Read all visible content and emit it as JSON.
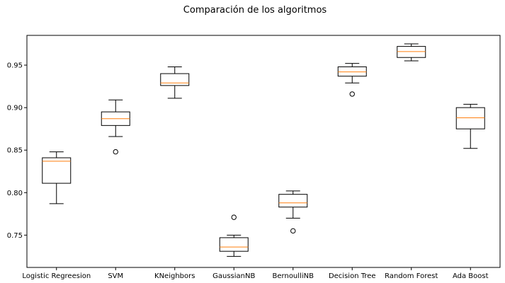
{
  "chart_data": {
    "type": "box",
    "title": "Comparación de los algoritmos",
    "xlabel": "",
    "ylabel": "",
    "ylim": [
      0.712,
      0.985
    ],
    "yticks": [
      0.75,
      0.8,
      0.85,
      0.9,
      0.95
    ],
    "ytick_labels": [
      "0.75",
      "0.80",
      "0.85",
      "0.90",
      "0.95"
    ],
    "grid": false,
    "colors": {
      "box": "#000000",
      "median": "#ff7f0e",
      "frame": "#000000"
    },
    "categories": [
      "Logistic Regreesion",
      "SVM",
      "KNeighbors",
      "GaussianNB",
      "BernoulliNB",
      "Decision Tree",
      "Random Forest",
      "Ada Boost"
    ],
    "boxes": [
      {
        "whisker_low": 0.787,
        "q1": 0.811,
        "median": 0.837,
        "q3": 0.841,
        "whisker_high": 0.848,
        "outliers": []
      },
      {
        "whisker_low": 0.866,
        "q1": 0.879,
        "median": 0.887,
        "q3": 0.895,
        "whisker_high": 0.909,
        "outliers": [
          0.848
        ]
      },
      {
        "whisker_low": 0.911,
        "q1": 0.926,
        "median": 0.929,
        "q3": 0.94,
        "whisker_high": 0.948,
        "outliers": []
      },
      {
        "whisker_low": 0.725,
        "q1": 0.731,
        "median": 0.736,
        "q3": 0.747,
        "whisker_high": 0.75,
        "outliers": [
          0.771
        ]
      },
      {
        "whisker_low": 0.77,
        "q1": 0.783,
        "median": 0.788,
        "q3": 0.798,
        "whisker_high": 0.802,
        "outliers": [
          0.755
        ]
      },
      {
        "whisker_low": 0.929,
        "q1": 0.937,
        "median": 0.942,
        "q3": 0.948,
        "whisker_high": 0.952,
        "outliers": [
          0.916
        ]
      },
      {
        "whisker_low": 0.955,
        "q1": 0.959,
        "median": 0.966,
        "q3": 0.972,
        "whisker_high": 0.975,
        "outliers": []
      },
      {
        "whisker_low": 0.852,
        "q1": 0.875,
        "median": 0.888,
        "q3": 0.9,
        "whisker_high": 0.904,
        "outliers": []
      }
    ]
  }
}
